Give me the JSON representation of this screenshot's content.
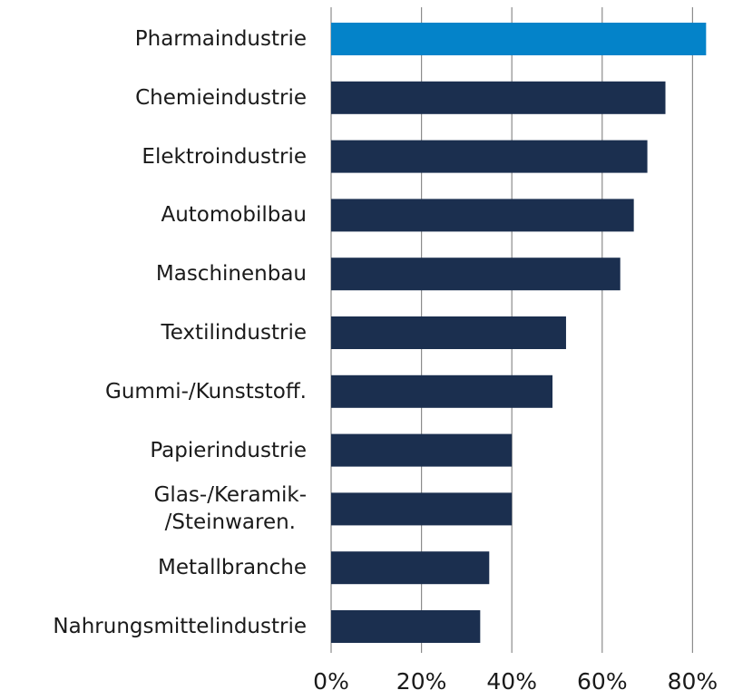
{
  "chart_data": {
    "type": "barh",
    "categories": [
      "Pharmaindustrie",
      "Chemieindustrie",
      "Elektroindustrie",
      "Automobilbau",
      "Maschinenbau",
      "Textilindustrie",
      "Gummi-/Kunststoff.",
      "Papierindustrie",
      "Glas-/Keramik-\n/Steinwaren.",
      "Metallbranche",
      "Nahrungsmittelindustrie"
    ],
    "values": [
      83,
      74,
      70,
      67,
      64,
      52,
      49,
      40,
      40,
      35,
      33
    ],
    "colors": [
      "#0483c9",
      "#1b2f4f",
      "#1b2f4f",
      "#1b2f4f",
      "#1b2f4f",
      "#1b2f4f",
      "#1b2f4f",
      "#1b2f4f",
      "#1b2f4f",
      "#1b2f4f",
      "#1b2f4f"
    ],
    "xlim": [
      0,
      88
    ],
    "xticks": [
      {
        "value": 0,
        "label": "0%"
      },
      {
        "value": 20,
        "label": "20%"
      },
      {
        "value": 40,
        "label": "40%"
      },
      {
        "value": 60,
        "label": "60%"
      },
      {
        "value": 80,
        "label": "80%"
      }
    ],
    "grid": true
  }
}
